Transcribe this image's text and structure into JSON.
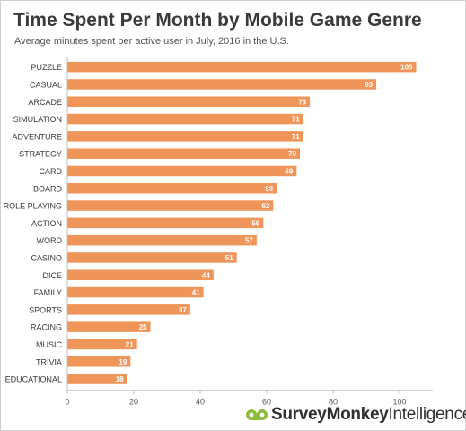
{
  "chart_data": {
    "type": "bar",
    "orientation": "horizontal",
    "title": "Time Spent Per Month by Mobile Game Genre",
    "subtitle": "Average minutes spent per active user in July, 2016 in the U.S.",
    "categories": [
      "PUZZLE",
      "CASUAL",
      "ARCADE",
      "SIMULATION",
      "ADVENTURE",
      "STRATEGY",
      "CARD",
      "BOARD",
      "ROLE PLAYING",
      "ACTION",
      "WORD",
      "CASINO",
      "DICE",
      "FAMILY",
      "SPORTS",
      "RACING",
      "MUSIC",
      "TRIVIA",
      "EDUCATIONAL"
    ],
    "values": [
      105,
      93,
      73,
      71,
      71,
      70,
      69,
      63,
      62,
      59,
      57,
      51,
      44,
      41,
      37,
      25,
      21,
      19,
      18
    ],
    "xlim": [
      0,
      110
    ],
    "xticks": [
      0,
      20,
      40,
      60,
      80,
      100
    ],
    "grid": false,
    "legend": "none",
    "bar_color": "#f0955a",
    "label_color": "#ffffff"
  },
  "branding": {
    "brand": "SurveyMonkey",
    "product": "Intelligence",
    "brand_color": "#8dbb3c"
  }
}
